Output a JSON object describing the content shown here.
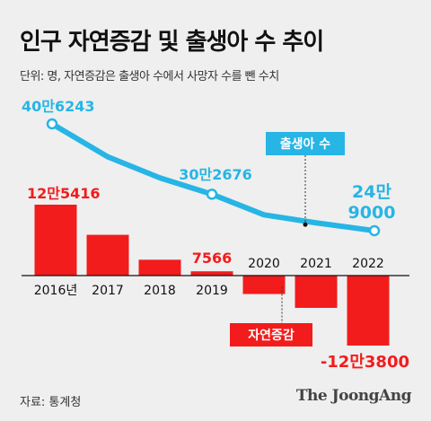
{
  "title": "인구 자연증감 및 출생아 수 추이",
  "subtitle": "단위: 명, 자연증감은 출생아 수에서 사망자 수를 뺀 수치",
  "source": "자료: 통계청",
  "credit": "The JoongAng",
  "colors": {
    "births": "#26b5e5",
    "natural": "#f21c1c",
    "background": "#efefef",
    "text": "#111111"
  },
  "chart_data": {
    "type": "bar+line",
    "categories": [
      "2016년",
      "2017",
      "2018",
      "2019",
      "2020",
      "2021",
      "2022"
    ],
    "series": [
      {
        "name": "출생아 수",
        "type": "line",
        "values": [
          406243,
          357771,
          326822,
          302676,
          272337,
          260562,
          249000
        ],
        "labels": [
          "40만6243",
          "",
          "",
          "30만2676",
          "",
          "",
          "24만\n9000"
        ]
      },
      {
        "name": "자연증감",
        "type": "bar",
        "values": [
          125416,
          72111,
          28040,
          7566,
          -32611,
          -57118,
          -123800
        ],
        "labels": [
          "12만5416",
          "",
          "",
          "7566",
          "",
          "",
          "-12만3800"
        ]
      }
    ]
  }
}
